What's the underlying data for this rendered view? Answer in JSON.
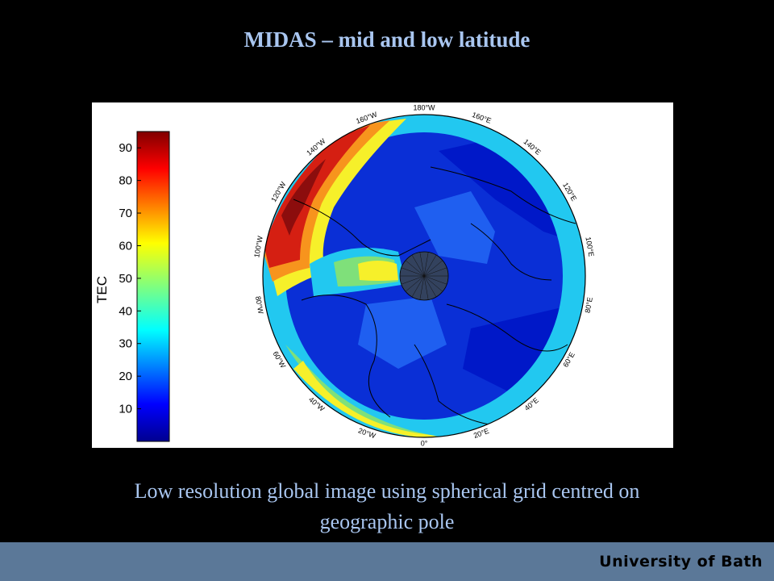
{
  "slide": {
    "title": "MIDAS – mid and low latitude",
    "caption_line1": "Low resolution global image using spherical grid centred on",
    "caption_line2": "geographic pole",
    "footer": "University of Bath"
  },
  "colorbar": {
    "title": "TEC",
    "ticks": [
      "10",
      "20",
      "30",
      "40",
      "50",
      "60",
      "70",
      "80",
      "90"
    ],
    "tick_values": [
      10,
      20,
      30,
      40,
      50,
      60,
      70,
      80,
      90
    ],
    "range": [
      0,
      95
    ]
  },
  "map": {
    "projection": "polar stereographic",
    "centre": "geographic pole",
    "colormap": "jet",
    "longitude_labels": [
      {
        "text": "180°W",
        "lon": 180
      },
      {
        "text": "160°E",
        "lon": 160
      },
      {
        "text": "140°E",
        "lon": 140
      },
      {
        "text": "120°E",
        "lon": 120
      },
      {
        "text": "100°E",
        "lon": 100
      },
      {
        "text": "80°E",
        "lon": 80
      },
      {
        "text": "60°E",
        "lon": 60
      },
      {
        "text": "40°E",
        "lon": 40
      },
      {
        "text": "20°E",
        "lon": 20
      },
      {
        "text": "0°",
        "lon": 0
      },
      {
        "text": "20°W",
        "lon": -20
      },
      {
        "text": "40°W",
        "lon": -40
      },
      {
        "text": "60°W",
        "lon": -60
      },
      {
        "text": "80°W",
        "lon": -80
      },
      {
        "text": "100°W",
        "lon": -100
      },
      {
        "text": "120°W",
        "lon": -120
      },
      {
        "text": "140°W",
        "lon": -140
      },
      {
        "text": "160°W",
        "lon": -160
      }
    ],
    "colors": {
      "background_blue": "#0a2fd6",
      "deep_blue": "#0018c8",
      "mid_blue": "#1f5ff0",
      "cyan": "#22c8f0",
      "green": "#7fe07a",
      "yellow": "#f6f02a",
      "orange": "#f7941d",
      "red": "#d51f12",
      "dark_red": "#8c0d0d",
      "polar_cap": "#33425e"
    }
  }
}
